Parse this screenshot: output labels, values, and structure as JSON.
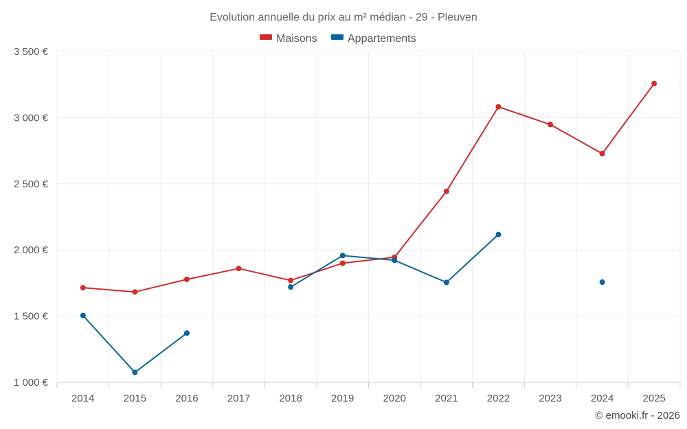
{
  "chart_data": {
    "type": "line",
    "title": "Evolution annuelle du prix au m² médian - 29 - Pleuven",
    "categories": [
      "2014",
      "2015",
      "2016",
      "2017",
      "2018",
      "2019",
      "2020",
      "2021",
      "2022",
      "2023",
      "2024",
      "2025"
    ],
    "series": [
      {
        "name": "Maisons",
        "color": "#d42a2a",
        "values": [
          1715,
          1683,
          1778,
          1860,
          1770,
          1900,
          1945,
          2443,
          3082,
          2948,
          2728,
          3258
        ]
      },
      {
        "name": "Appartements",
        "color": "#07659d",
        "values": [
          1505,
          1075,
          1372,
          null,
          1720,
          1958,
          1922,
          1755,
          2117,
          null,
          1757,
          null
        ]
      }
    ],
    "ylim": [
      1000,
      3500
    ],
    "yticks": [
      1000,
      1500,
      2000,
      2500,
      3000,
      3500
    ],
    "ytick_labels": [
      "1 000 €",
      "1 500 €",
      "2 000 €",
      "2 500 €",
      "3 000 €",
      "3 500 €"
    ],
    "xlabel": "",
    "ylabel": "",
    "legend_position": "top-center",
    "grid": true
  },
  "credit": "© emooki.fr - 2026"
}
